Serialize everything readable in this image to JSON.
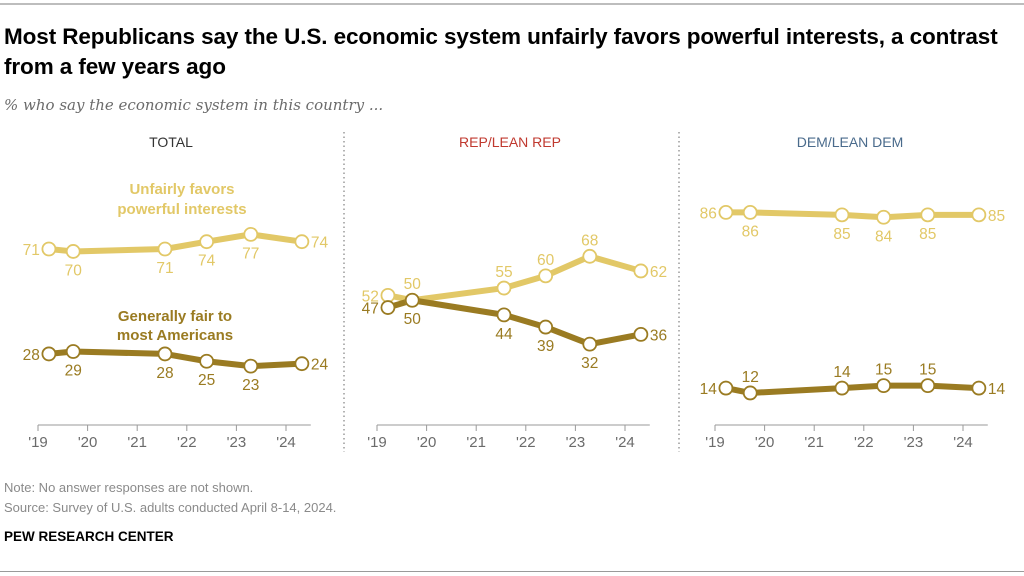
{
  "header": {
    "title": "Most Republicans say the U.S. economic system unfairly favors powerful interests, a contrast from a few years ago",
    "subtitle": "% who say the economic system in this country ..."
  },
  "footer": {
    "note": "Note: No answer responses are not shown.",
    "source": "Source: Survey of U.S. adults conducted April 8-14, 2024.",
    "brand": "PEW RESEARCH CENTER"
  },
  "colors": {
    "unfair": "#E2C867",
    "fair": "#9A7B22",
    "rep": "#C0392F",
    "dem": "#4A6B8C",
    "total": "#333333",
    "axis": "#9a9a9a"
  },
  "chart_data": {
    "type": "line",
    "title": "Most Republicans say the U.S. economic system unfairly favors powerful interests, a contrast from a few years ago",
    "subtitle": "% who say the economic system in this country ...",
    "x": [
      2019.22,
      2019.71,
      2021.56,
      2022.4,
      2023.29,
      2024.32
    ],
    "x_ticks": [
      "'19",
      "'20",
      "'21",
      "'22",
      "'23",
      "'24"
    ],
    "xlim": [
      2019,
      2024.5
    ],
    "ylim": [
      0,
      100
    ],
    "grid": false,
    "series_labels": {
      "unfair": "Unfairly favors powerful interests",
      "fair": "Generally fair to most Americans"
    },
    "panels": [
      {
        "id": "total",
        "title": "TOTAL",
        "series": [
          {
            "name": "Unfairly favors powerful interests",
            "key": "unfair",
            "values": [
              71,
              70,
              71,
              74,
              77,
              74
            ]
          },
          {
            "name": "Generally fair to most Americans",
            "key": "fair",
            "values": [
              28,
              29,
              28,
              25,
              23,
              24
            ]
          }
        ]
      },
      {
        "id": "rep",
        "title": "REP/LEAN REP",
        "series": [
          {
            "name": "Unfairly favors powerful interests",
            "key": "unfair",
            "values": [
              52,
              50,
              55,
              60,
              68,
              62
            ]
          },
          {
            "name": "Generally fair to most Americans",
            "key": "fair",
            "values": [
              47,
              50,
              44,
              39,
              32,
              36
            ]
          }
        ]
      },
      {
        "id": "dem",
        "title": "DEM/LEAN DEM",
        "series": [
          {
            "name": "Unfairly favors powerful interests",
            "key": "unfair",
            "values": [
              86,
              86,
              85,
              84,
              85,
              85
            ]
          },
          {
            "name": "Generally fair to most Americans",
            "key": "fair",
            "values": [
              14,
              12,
              14,
              15,
              15,
              14
            ]
          }
        ]
      }
    ]
  }
}
